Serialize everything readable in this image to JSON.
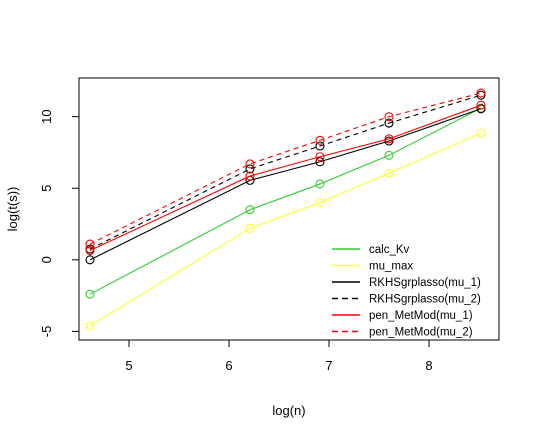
{
  "chart_data": {
    "type": "line",
    "title": "",
    "xlabel": "log(n)",
    "ylabel": "log(t(s))",
    "xlim": [
      4.5,
      8.7
    ],
    "ylim": [
      -5.6,
      12.7
    ],
    "x_ticks": [
      5,
      6,
      7,
      8
    ],
    "y_ticks": [
      -5,
      0,
      5,
      10
    ],
    "grid": false,
    "legend_position": "bottom-right",
    "x": [
      4.61,
      6.21,
      6.91,
      7.6,
      8.52
    ],
    "series": [
      {
        "name": "calc_Kv",
        "color": "#33cc33",
        "dash": "solid",
        "values": [
          -2.4,
          3.5,
          5.3,
          7.3,
          10.6
        ]
      },
      {
        "name": "mu_max",
        "color": "#ffff33",
        "dash": "solid",
        "values": [
          -4.6,
          2.2,
          4.0,
          6.05,
          8.85
        ]
      },
      {
        "name": "RKHSgrplasso(mu_1)",
        "color": "#000000",
        "dash": "solid",
        "values": [
          0.0,
          5.55,
          6.85,
          8.3,
          10.55
        ]
      },
      {
        "name": "RKHSgrplasso(mu_2)",
        "color": "#000000",
        "dash": "dashed",
        "values": [
          0.75,
          6.35,
          7.95,
          9.55,
          11.5
        ]
      },
      {
        "name": "pen_MetMod(mu_1)",
        "color": "#ff0000",
        "dash": "solid",
        "values": [
          0.65,
          5.85,
          7.2,
          8.45,
          10.8
        ]
      },
      {
        "name": "pen_MetMod(mu_2)",
        "color": "#ff0000",
        "dash": "dashed",
        "values": [
          1.1,
          6.7,
          8.35,
          10.0,
          11.65
        ]
      }
    ]
  }
}
